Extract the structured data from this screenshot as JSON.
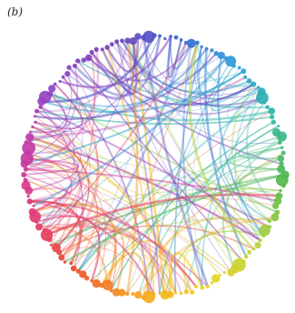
{
  "panel_label": "(b)",
  "diagram": {
    "type": "circular-chord-network",
    "node_count": 150,
    "edge_count": 170,
    "palette": [
      "#7a3fb8",
      "#3b5fd0",
      "#2f9fd6",
      "#2fb8a0",
      "#56b848",
      "#b7d43b",
      "#f3d21c",
      "#f6a11e",
      "#ee4b2b",
      "#e23a79",
      "#c23aa8",
      "#8a45c4"
    ]
  }
}
